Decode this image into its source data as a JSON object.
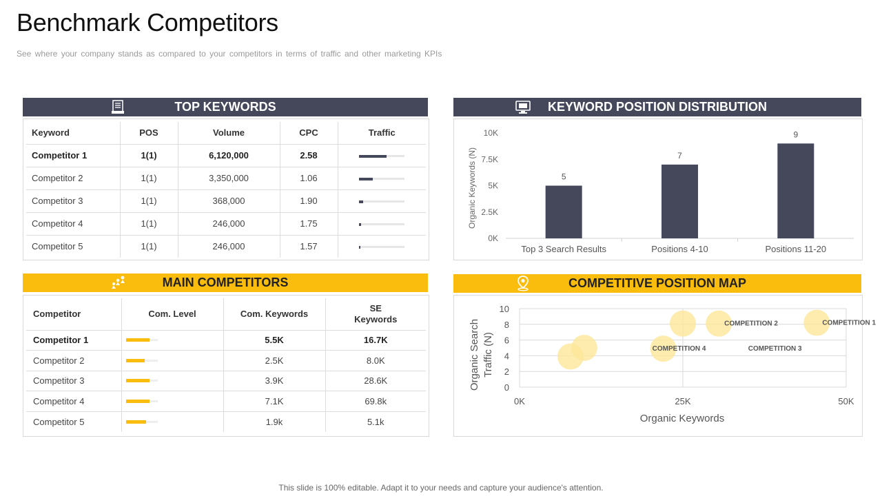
{
  "page": {
    "title": "Benchmark Competitors",
    "subtitle": "See where your company stands as compared to your competitors in terms of traffic and other marketing KPIs",
    "footer": "This slide is 100% editable. Adapt it to your needs and capture your audience's attention."
  },
  "colors": {
    "dark": "#44485a",
    "yellow": "#fbbd0d",
    "bubble": "#fde79a"
  },
  "top_keywords": {
    "header": "TOP KEYWORDS",
    "icon": "document-icon",
    "columns": [
      "Keyword",
      "POS",
      "Volume",
      "CPC",
      "Traffic"
    ],
    "rows": [
      {
        "keyword": "Competitor 1",
        "pos": "1(1)",
        "volume": "6,120,000",
        "cpc": "2.58",
        "traffic": 0.6
      },
      {
        "keyword": "Competitor 2",
        "pos": "1(1)",
        "volume": "3,350,000",
        "cpc": "1.06",
        "traffic": 0.3
      },
      {
        "keyword": "Competitor 3",
        "pos": "1(1)",
        "volume": "368,000",
        "cpc": "1.90",
        "traffic": 0.09
      },
      {
        "keyword": "Competitor 4",
        "pos": "1(1)",
        "volume": "246,000",
        "cpc": "1.75",
        "traffic": 0.04
      },
      {
        "keyword": "Competitor 5",
        "pos": "1(1)",
        "volume": "246,000",
        "cpc": "1.57",
        "traffic": 0.03
      }
    ]
  },
  "main_competitors": {
    "header": "MAIN COMPETITORS",
    "icon": "competitors-icon",
    "columns": [
      "Competitor",
      "Com. Level",
      "Com. Keywords",
      "SE Keywords"
    ],
    "rows": [
      {
        "competitor": "Competitor 1",
        "level": 0.75,
        "com_keywords": "5.5K",
        "se_keywords": "16.7K"
      },
      {
        "competitor": "Competitor 2",
        "level": 0.6,
        "com_keywords": "2.5K",
        "se_keywords": "8.0K"
      },
      {
        "competitor": "Competitor 3",
        "level": 0.75,
        "com_keywords": "3.9K",
        "se_keywords": "28.6K"
      },
      {
        "competitor": "Competitor 4",
        "level": 0.75,
        "com_keywords": "7.1K",
        "se_keywords": "69.8k"
      },
      {
        "competitor": "Competitor 5",
        "level": 0.65,
        "com_keywords": "1.9k",
        "se_keywords": "5.1k"
      }
    ]
  },
  "position_distribution": {
    "header": "KEYWORD POSITION DISTRIBUTION",
    "icon": "monitor-icon"
  },
  "position_map": {
    "header": "COMPETITIVE  POSITION MAP",
    "icon": "location-pin-icon"
  },
  "chart_data": [
    {
      "type": "bar",
      "categories": [
        "Top 3 Search Results",
        "Positions 4-10",
        "Positions 11-20"
      ],
      "values": [
        5,
        7,
        9
      ],
      "data_labels": [
        "5",
        "7",
        "9"
      ],
      "ylabel": "Organic  Keywords  (N)",
      "ylim": [
        0,
        10
      ],
      "y_ticks": [
        {
          "value": 0,
          "label": "0K"
        },
        {
          "value": 2.5,
          "label": "2.5K"
        },
        {
          "value": 5,
          "label": "5K"
        },
        {
          "value": 7.5,
          "label": "7.5K"
        },
        {
          "value": 10,
          "label": "10K"
        }
      ],
      "color": "#44485a",
      "grid": false
    },
    {
      "type": "scatter",
      "xlabel": "Organic Keywords",
      "ylabel": "Organic Search Traffic (N)",
      "xlim": [
        0,
        50000
      ],
      "ylim": [
        0,
        10
      ],
      "x_ticks": [
        {
          "value": 0,
          "label": "0K"
        },
        {
          "value": 25000,
          "label": "25K"
        },
        {
          "value": 50000,
          "label": "50K"
        }
      ],
      "y_ticks": [
        0,
        2,
        4,
        6,
        8,
        10
      ],
      "grid": true,
      "points": [
        {
          "x": 7800,
          "y": 3.9,
          "label": ""
        },
        {
          "x": 9900,
          "y": 5.0,
          "label": ""
        },
        {
          "x": 22000,
          "y": 4.9,
          "label": "COMPETITION 4"
        },
        {
          "x": 25000,
          "y": 8.1,
          "label": ""
        },
        {
          "x": 30500,
          "y": 8.1,
          "label": "COMPETITION 2"
        },
        {
          "x": 45500,
          "y": 8.2,
          "label": "COMPETITION 1"
        }
      ],
      "annotations": [
        {
          "text": "COMPETITION 3",
          "x": 35000,
          "y": 5.0
        }
      ]
    }
  ]
}
